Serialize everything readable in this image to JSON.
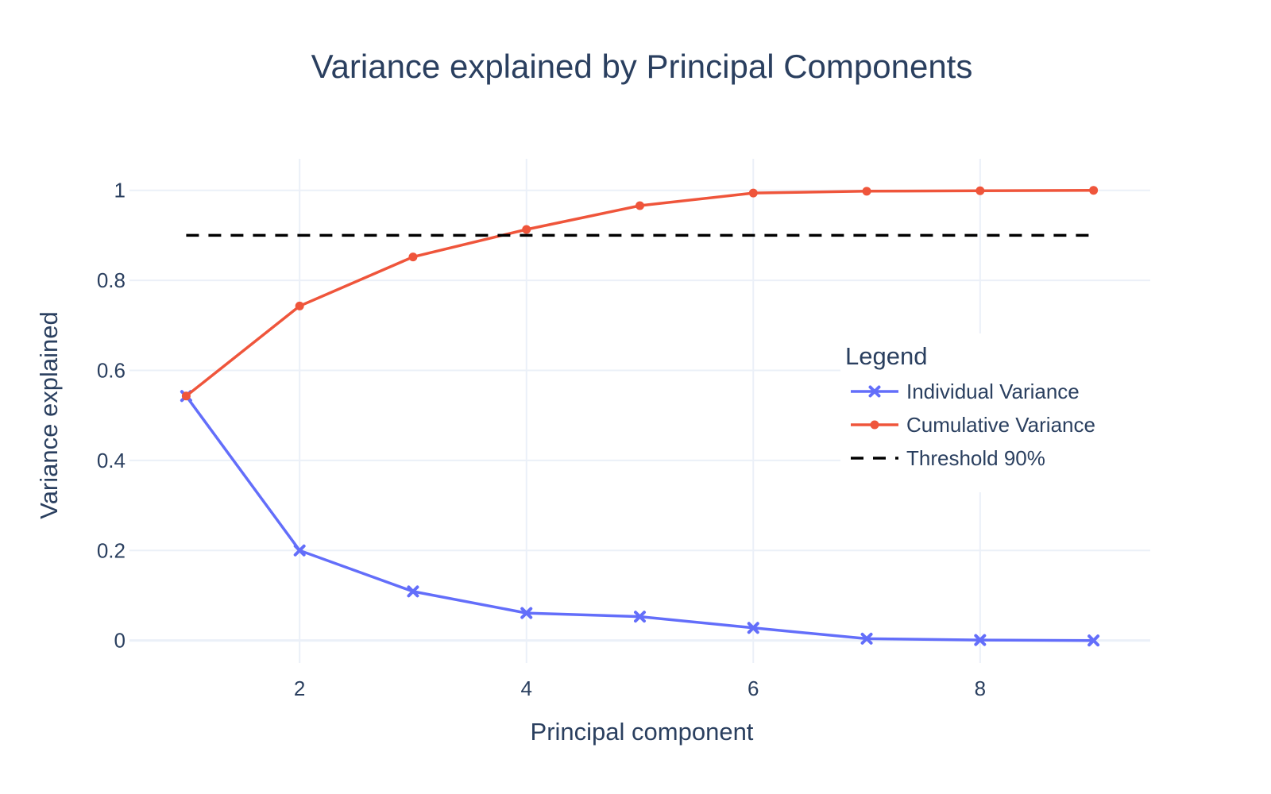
{
  "chart_data": {
    "type": "line",
    "title": "Variance explained by Principal Components",
    "xlabel": "Principal component",
    "ylabel": "Variance explained",
    "xlim": [
      0.5,
      9.5
    ],
    "ylim": [
      -0.05,
      1.07
    ],
    "xticks": [
      2,
      4,
      6,
      8
    ],
    "yticks": [
      0,
      0.2,
      0.4,
      0.6,
      0.8,
      1
    ],
    "grid": true,
    "legend_title": "Legend",
    "legend_placement": "right",
    "series": [
      {
        "name": "Individual Variance",
        "color": "#636efa",
        "marker": "x",
        "dash": "solid",
        "x": [
          1,
          2,
          3,
          4,
          5,
          6,
          7,
          8,
          9
        ],
        "y": [
          0.543,
          0.2,
          0.109,
          0.061,
          0.053,
          0.028,
          0.004,
          0.001,
          0.0
        ]
      },
      {
        "name": "Cumulative Variance",
        "color": "#ef553b",
        "marker": "circle",
        "dash": "solid",
        "x": [
          1,
          2,
          3,
          4,
          5,
          6,
          7,
          8,
          9
        ],
        "y": [
          0.543,
          0.743,
          0.852,
          0.913,
          0.966,
          0.994,
          0.998,
          0.999,
          1.0
        ]
      },
      {
        "name": "Threshold 90%",
        "color": "#000000",
        "marker": "none",
        "dash": "dash",
        "x": [
          1,
          9
        ],
        "y": [
          0.9,
          0.9
        ]
      }
    ]
  }
}
